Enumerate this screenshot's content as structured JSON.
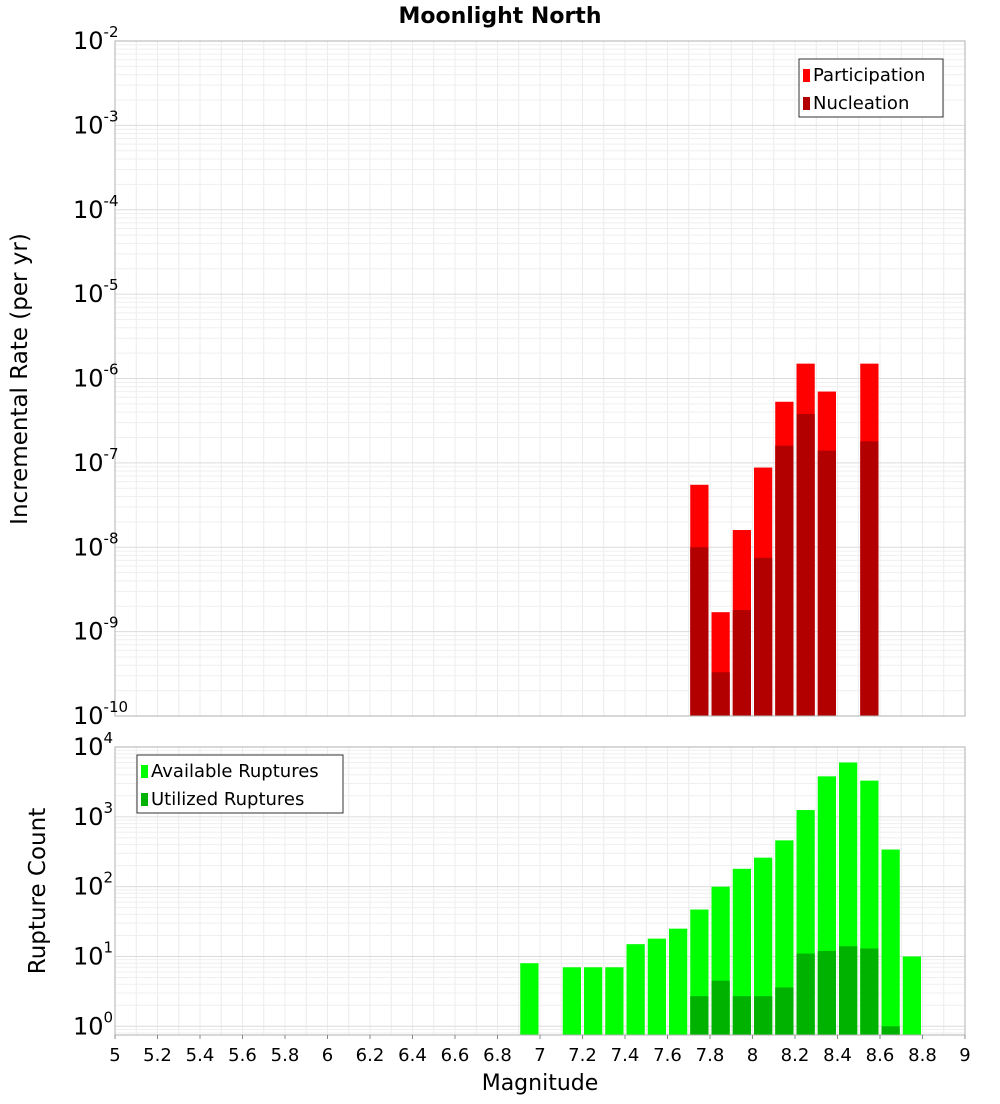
{
  "title": "Moonlight North",
  "chart_data": [
    {
      "type": "bar",
      "title": "Moonlight North",
      "xlabel": "",
      "ylabel": "Incremental Rate (per yr)",
      "xlim": [
        5,
        9
      ],
      "ylim": [
        1e-10,
        0.01
      ],
      "yscale": "log",
      "grid": true,
      "legend_position": "top-right",
      "ytick_exponents": [
        "-10",
        "-9",
        "-8",
        "-7",
        "-6",
        "-5",
        "-4",
        "-3",
        "-2"
      ],
      "bar_width": 0.1,
      "series": [
        {
          "name": "Participation",
          "color": "#ff0000",
          "x": [
            7.75,
            7.85,
            7.95,
            8.05,
            8.15,
            8.25,
            8.35,
            8.55
          ],
          "values": [
            5.5e-08,
            1.7e-09,
            1.6e-08,
            8.8e-08,
            5.3e-07,
            1.5e-06,
            7e-07,
            1.5e-06
          ]
        },
        {
          "name": "Nucleation",
          "color": "#b20000",
          "x": [
            7.75,
            7.85,
            7.95,
            8.05,
            8.15,
            8.25,
            8.35,
            8.55
          ],
          "values": [
            1e-08,
            3.3e-10,
            1.8e-09,
            7.5e-09,
            1.6e-07,
            3.8e-07,
            1.4e-07,
            1.8e-07
          ]
        }
      ]
    },
    {
      "type": "bar",
      "title": "",
      "xlabel": "Magnitude",
      "ylabel": "Rupture Count",
      "xlim": [
        5,
        9
      ],
      "ylim": [
        0.75,
        10000
      ],
      "yscale": "log",
      "grid": true,
      "legend_position": "top-left",
      "ytick_exponents": [
        "0",
        "1",
        "2",
        "3",
        "4"
      ],
      "xticks": [
        "5",
        "5.2",
        "5.4",
        "5.6",
        "5.8",
        "6",
        "6.2",
        "6.4",
        "6.6",
        "6.8",
        "7",
        "7.2",
        "7.4",
        "7.6",
        "7.8",
        "8",
        "8.2",
        "8.4",
        "8.6",
        "8.8",
        "9"
      ],
      "bar_width": 0.1,
      "series": [
        {
          "name": "Available Ruptures",
          "color": "#00ff00",
          "x": [
            6.95,
            7.15,
            7.25,
            7.35,
            7.45,
            7.55,
            7.65,
            7.75,
            7.85,
            7.95,
            8.05,
            8.15,
            8.25,
            8.35,
            8.45,
            8.55,
            8.65,
            8.75
          ],
          "values": [
            8,
            7,
            7,
            7,
            15,
            18,
            25,
            47,
            100,
            180,
            260,
            460,
            1250,
            3800,
            6000,
            3300,
            340,
            10
          ]
        },
        {
          "name": "Utilized Ruptures",
          "color": "#00b200",
          "x": [
            7.75,
            7.85,
            7.95,
            8.05,
            8.15,
            8.25,
            8.35,
            8.45,
            8.55,
            8.65
          ],
          "values": [
            2.7,
            4.5,
            2.7,
            2.7,
            3.6,
            11,
            12,
            14,
            13,
            1
          ]
        }
      ]
    }
  ]
}
